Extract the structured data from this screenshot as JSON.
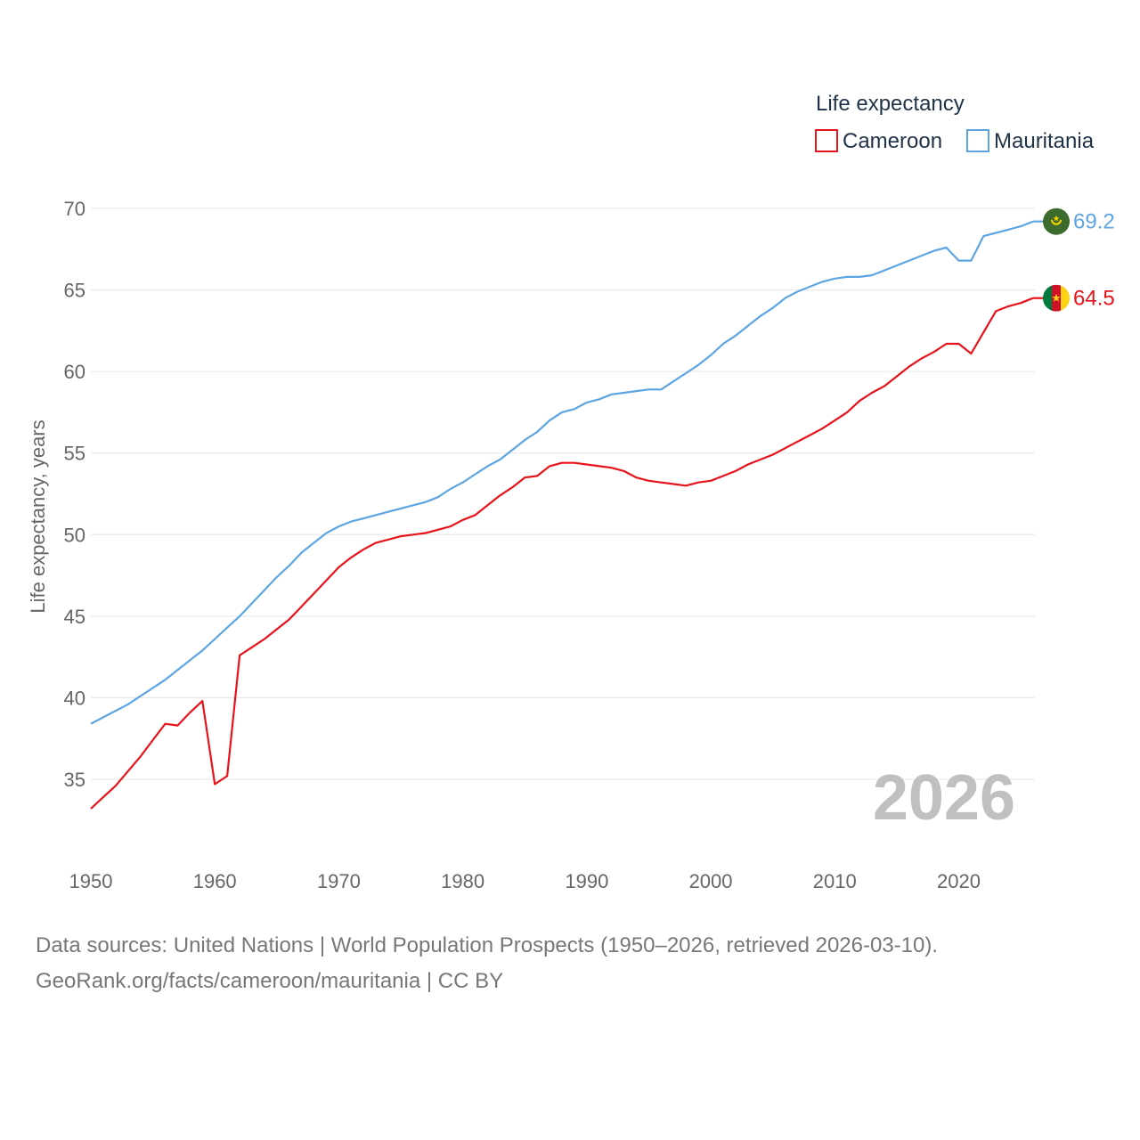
{
  "chart_data": {
    "type": "line",
    "title": "Life expectancy",
    "xlabel": "",
    "ylabel": "Life expectancy, years",
    "xlim": [
      1950,
      2026
    ],
    "ylim": [
      33,
      71
    ],
    "x_ticks": [
      1950,
      1960,
      1970,
      1980,
      1990,
      2000,
      2010,
      2020
    ],
    "y_ticks": [
      35,
      40,
      45,
      50,
      55,
      60,
      65,
      70
    ],
    "year_label": "2026",
    "legend": "top-right",
    "series": [
      {
        "name": "Cameroon",
        "color": "#e8131a",
        "end_label": "64.5",
        "flag_icon": "cameroon-flag-icon",
        "x": [
          1950,
          1951,
          1952,
          1953,
          1954,
          1955,
          1956,
          1957,
          1958,
          1959,
          1960,
          1961,
          1962,
          1963,
          1964,
          1965,
          1966,
          1967,
          1968,
          1969,
          1970,
          1971,
          1972,
          1973,
          1974,
          1975,
          1976,
          1977,
          1978,
          1979,
          1980,
          1981,
          1982,
          1983,
          1984,
          1985,
          1986,
          1987,
          1988,
          1989,
          1990,
          1991,
          1992,
          1993,
          1994,
          1995,
          1996,
          1997,
          1998,
          1999,
          2000,
          2001,
          2002,
          2003,
          2004,
          2005,
          2006,
          2007,
          2008,
          2009,
          2010,
          2011,
          2012,
          2013,
          2014,
          2015,
          2016,
          2017,
          2018,
          2019,
          2020,
          2021,
          2022,
          2023,
          2024,
          2025,
          2026
        ],
        "values": [
          33.2,
          33.9,
          34.6,
          35.5,
          36.4,
          37.4,
          38.4,
          38.3,
          39.1,
          39.8,
          34.7,
          35.2,
          42.6,
          43.1,
          43.6,
          44.2,
          44.8,
          45.6,
          46.4,
          47.2,
          48.0,
          48.6,
          49.1,
          49.5,
          49.7,
          49.9,
          50.0,
          50.1,
          50.3,
          50.5,
          50.9,
          51.2,
          51.8,
          52.4,
          52.9,
          53.5,
          53.6,
          54.2,
          54.4,
          54.4,
          54.3,
          54.2,
          54.1,
          53.9,
          53.5,
          53.3,
          53.2,
          53.1,
          53.0,
          53.2,
          53.3,
          53.6,
          53.9,
          54.3,
          54.6,
          54.9,
          55.3,
          55.7,
          56.1,
          56.5,
          57.0,
          57.5,
          58.2,
          58.7,
          59.1,
          59.7,
          60.3,
          60.8,
          61.2,
          61.7,
          61.7,
          61.1,
          62.4,
          63.7,
          64.0,
          64.2,
          64.5
        ]
      },
      {
        "name": "Mauritania",
        "color": "#5da5e2",
        "end_label": "69.2",
        "flag_icon": "mauritania-flag-icon",
        "x": [
          1950,
          1951,
          1952,
          1953,
          1954,
          1955,
          1956,
          1957,
          1958,
          1959,
          1960,
          1961,
          1962,
          1963,
          1964,
          1965,
          1966,
          1967,
          1968,
          1969,
          1970,
          1971,
          1972,
          1973,
          1974,
          1975,
          1976,
          1977,
          1978,
          1979,
          1980,
          1981,
          1982,
          1983,
          1984,
          1985,
          1986,
          1987,
          1988,
          1989,
          1990,
          1991,
          1992,
          1993,
          1994,
          1995,
          1996,
          1997,
          1998,
          1999,
          2000,
          2001,
          2002,
          2003,
          2004,
          2005,
          2006,
          2007,
          2008,
          2009,
          2010,
          2011,
          2012,
          2013,
          2014,
          2015,
          2016,
          2017,
          2018,
          2019,
          2020,
          2021,
          2022,
          2023,
          2024,
          2025,
          2026
        ],
        "values": [
          38.4,
          38.8,
          39.2,
          39.6,
          40.1,
          40.6,
          41.1,
          41.7,
          42.3,
          42.9,
          43.6,
          44.3,
          45.0,
          45.8,
          46.6,
          47.4,
          48.1,
          48.9,
          49.5,
          50.1,
          50.5,
          50.8,
          51.0,
          51.2,
          51.4,
          51.6,
          51.8,
          52.0,
          52.3,
          52.8,
          53.2,
          53.7,
          54.2,
          54.6,
          55.2,
          55.8,
          56.3,
          57.0,
          57.5,
          57.7,
          58.1,
          58.3,
          58.6,
          58.7,
          58.8,
          58.9,
          58.9,
          59.4,
          59.9,
          60.4,
          61.0,
          61.7,
          62.2,
          62.8,
          63.4,
          63.9,
          64.5,
          64.9,
          65.2,
          65.5,
          65.7,
          65.8,
          65.8,
          65.9,
          66.2,
          66.5,
          66.8,
          67.1,
          67.4,
          67.6,
          66.8,
          66.8,
          68.3,
          68.5,
          68.7,
          68.9,
          69.2
        ]
      }
    ]
  },
  "source": {
    "line1": "Data sources: United Nations | World Population Prospects (1950–2026, retrieved 2026-03-10).",
    "line2": "GeoRank.org/facts/cameroon/mauritania | CC BY"
  }
}
